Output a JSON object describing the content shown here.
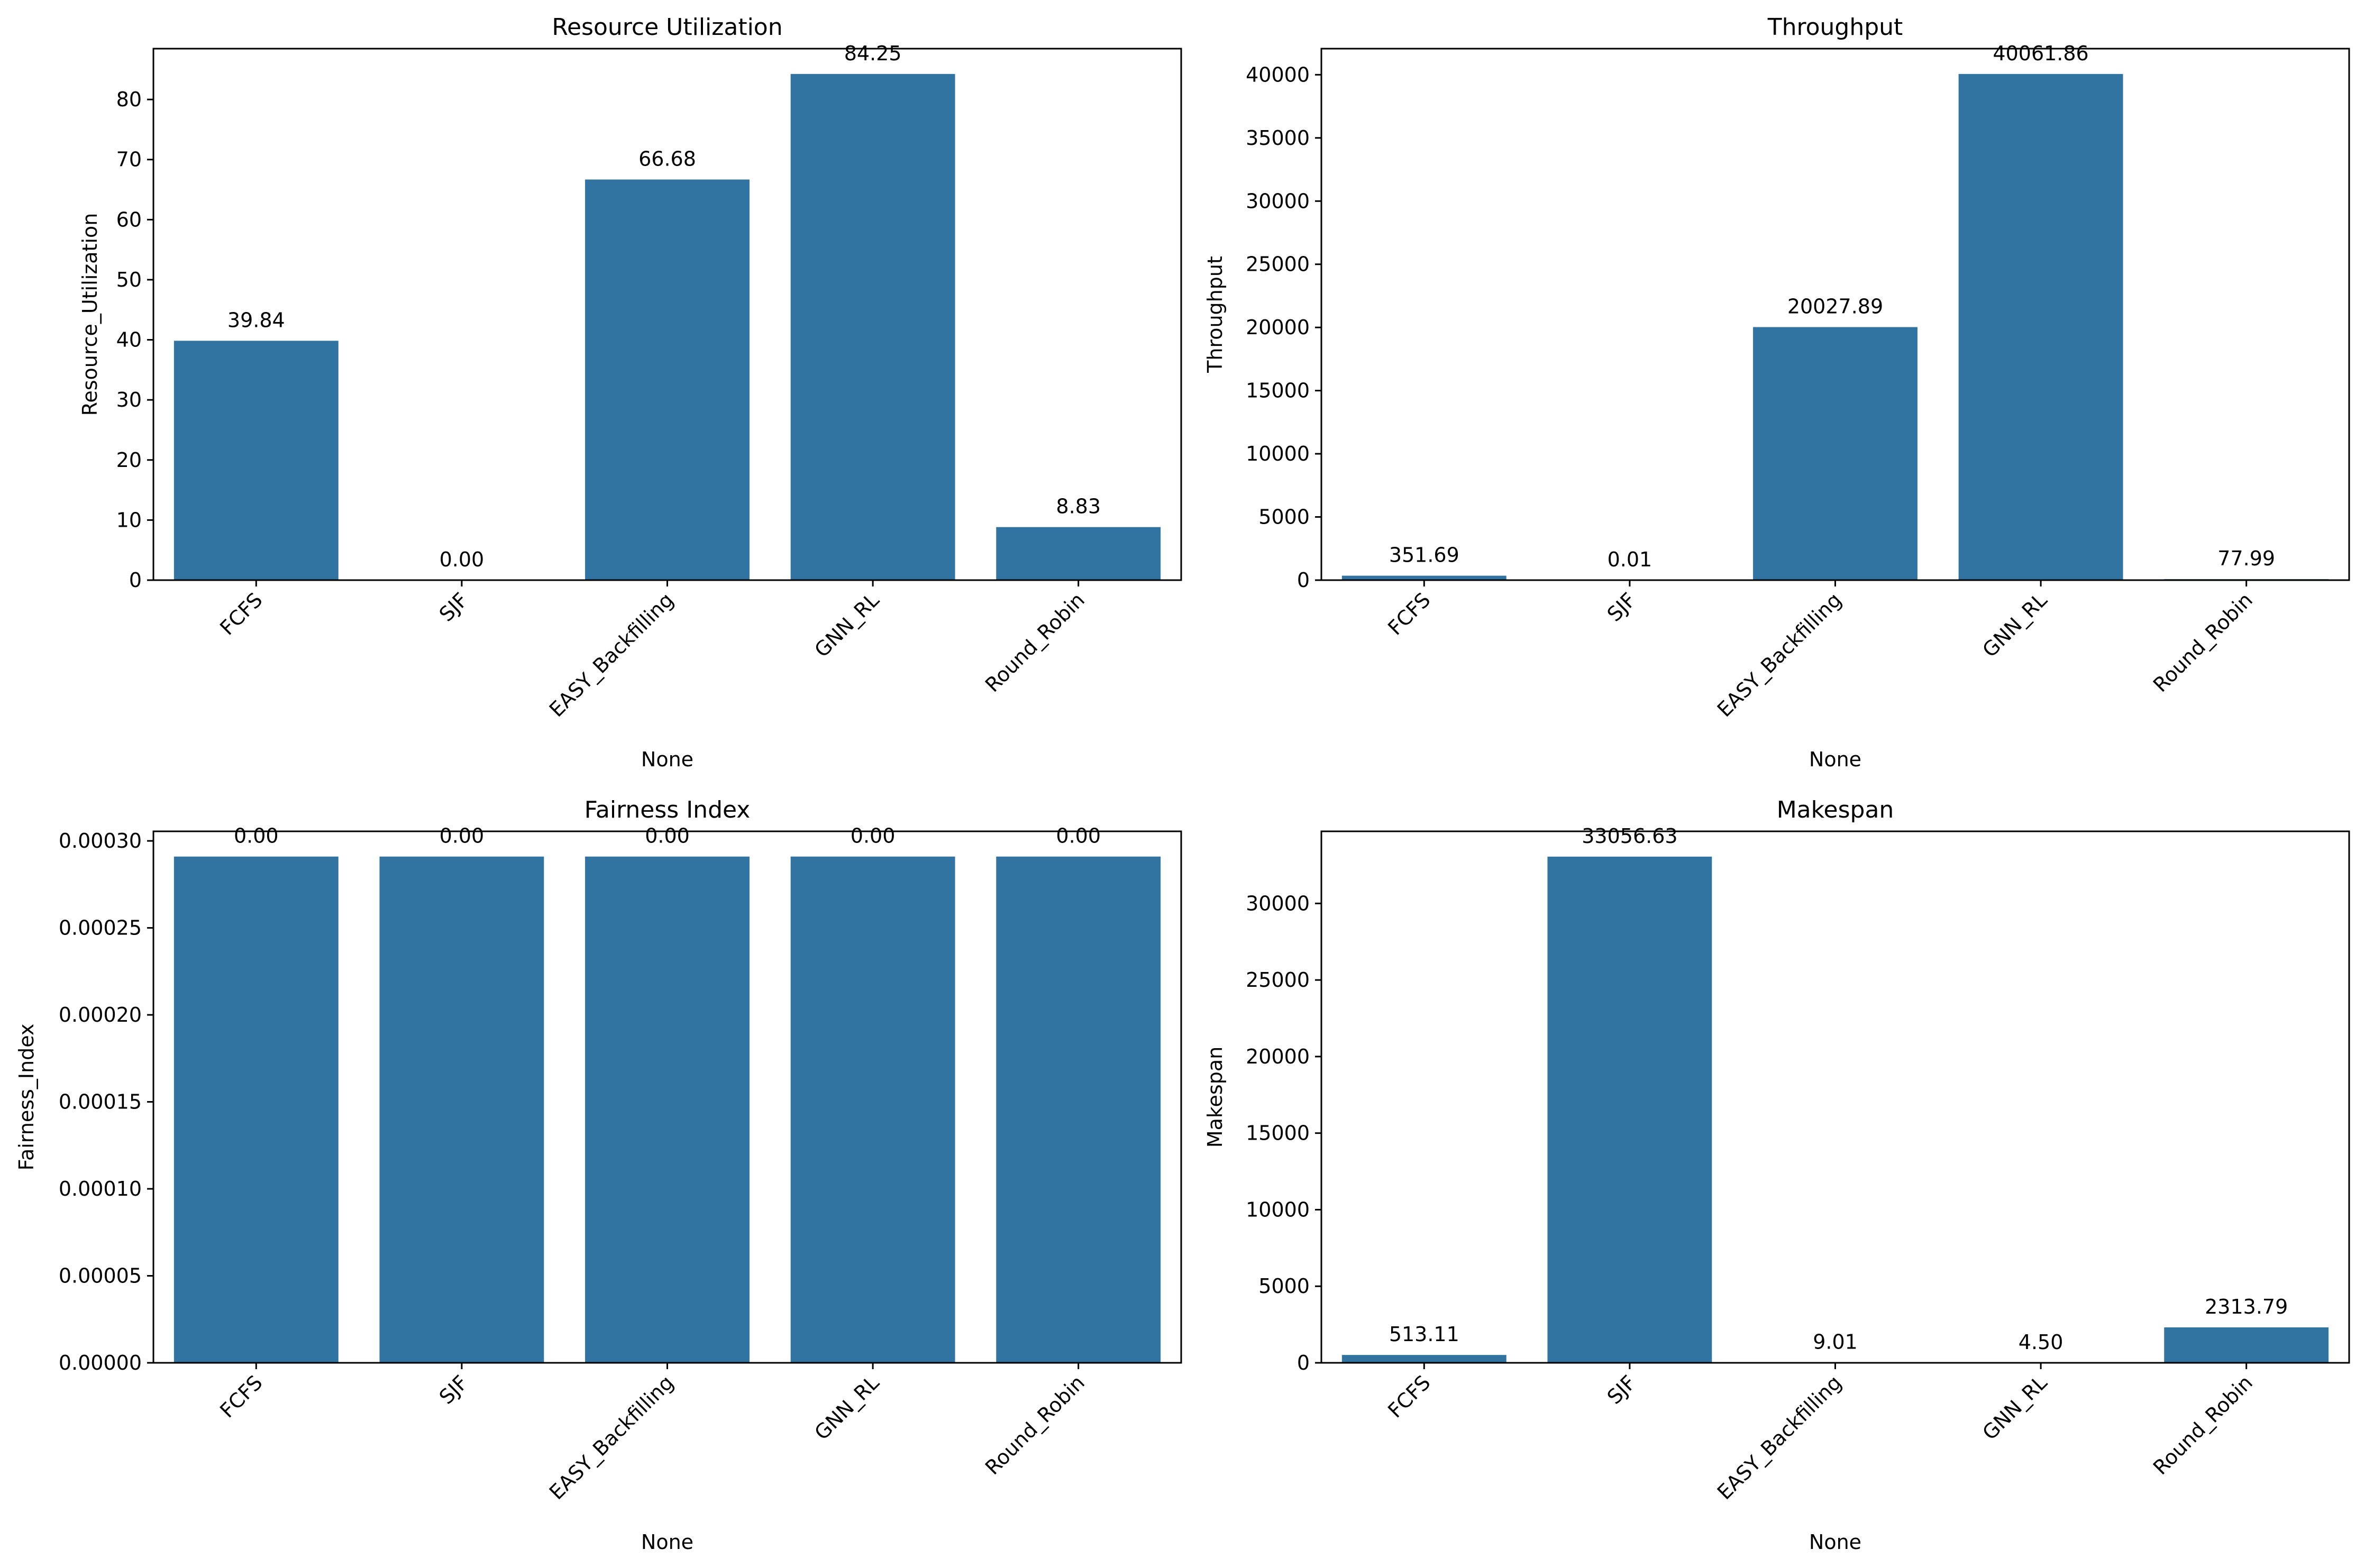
{
  "colors": {
    "bar": "#3274a1",
    "axis": "#000000",
    "background": "#ffffff"
  },
  "chart_data": [
    {
      "type": "bar",
      "title": "Resource Utilization",
      "xlabel": "None",
      "ylabel": "Resource_Utilization",
      "categories": [
        "FCFS",
        "SJF",
        "EASY_Backfilling",
        "GNN_RL",
        "Round_Robin"
      ],
      "values": [
        39.84,
        0.0,
        66.68,
        84.25,
        8.83
      ],
      "data_labels": [
        "39.84",
        "0.00",
        "66.68",
        "84.25",
        "8.83"
      ],
      "ylim": [
        0,
        88.46
      ],
      "yticks": [
        0,
        10,
        20,
        30,
        40,
        50,
        60,
        70,
        80
      ],
      "ytick_labels": [
        "0",
        "10",
        "20",
        "30",
        "40",
        "50",
        "60",
        "70",
        "80"
      ],
      "grid": false,
      "legend": "none"
    },
    {
      "type": "bar",
      "title": "Throughput",
      "xlabel": "None",
      "ylabel": "Throughput",
      "categories": [
        "FCFS",
        "SJF",
        "EASY_Backfilling",
        "GNN_RL",
        "Round_Robin"
      ],
      "values": [
        351.69,
        0.01,
        20027.89,
        40061.86,
        77.99
      ],
      "data_labels": [
        "351.69",
        "0.01",
        "20027.89",
        "40061.86",
        "77.99"
      ],
      "ylim": [
        0,
        42065
      ],
      "yticks": [
        0,
        5000,
        10000,
        15000,
        20000,
        25000,
        30000,
        35000,
        40000
      ],
      "ytick_labels": [
        "0",
        "5000",
        "10000",
        "15000",
        "20000",
        "25000",
        "30000",
        "35000",
        "40000"
      ],
      "grid": false,
      "legend": "none"
    },
    {
      "type": "bar",
      "title": "Fairness Index",
      "xlabel": "None",
      "ylabel": "Fairness_Index",
      "categories": [
        "FCFS",
        "SJF",
        "EASY_Backfilling",
        "GNN_RL",
        "Round_Robin"
      ],
      "values": [
        0.000291,
        0.000291,
        0.000291,
        0.000291,
        0.000291
      ],
      "data_labels": [
        "0.00",
        "0.00",
        "0.00",
        "0.00",
        "0.00"
      ],
      "ylim": [
        0,
        0.0003055
      ],
      "yticks": [
        0,
        5e-05,
        0.0001,
        0.00015,
        0.0002,
        0.00025,
        0.0003
      ],
      "ytick_labels": [
        "0.00000",
        "0.00005",
        "0.00010",
        "0.00015",
        "0.00020",
        "0.00025",
        "0.00030"
      ],
      "grid": false,
      "legend": "none"
    },
    {
      "type": "bar",
      "title": "Makespan",
      "xlabel": "None",
      "ylabel": "Makespan",
      "categories": [
        "FCFS",
        "SJF",
        "EASY_Backfilling",
        "GNN_RL",
        "Round_Robin"
      ],
      "values": [
        513.11,
        33056.63,
        9.01,
        4.5,
        2313.79
      ],
      "data_labels": [
        "513.11",
        "33056.63",
        "9.01",
        "4.50",
        "2313.79"
      ],
      "ylim": [
        0,
        34709
      ],
      "yticks": [
        0,
        5000,
        10000,
        15000,
        20000,
        25000,
        30000
      ],
      "ytick_labels": [
        "0",
        "5000",
        "10000",
        "15000",
        "20000",
        "25000",
        "30000"
      ],
      "grid": false,
      "legend": "none"
    }
  ]
}
